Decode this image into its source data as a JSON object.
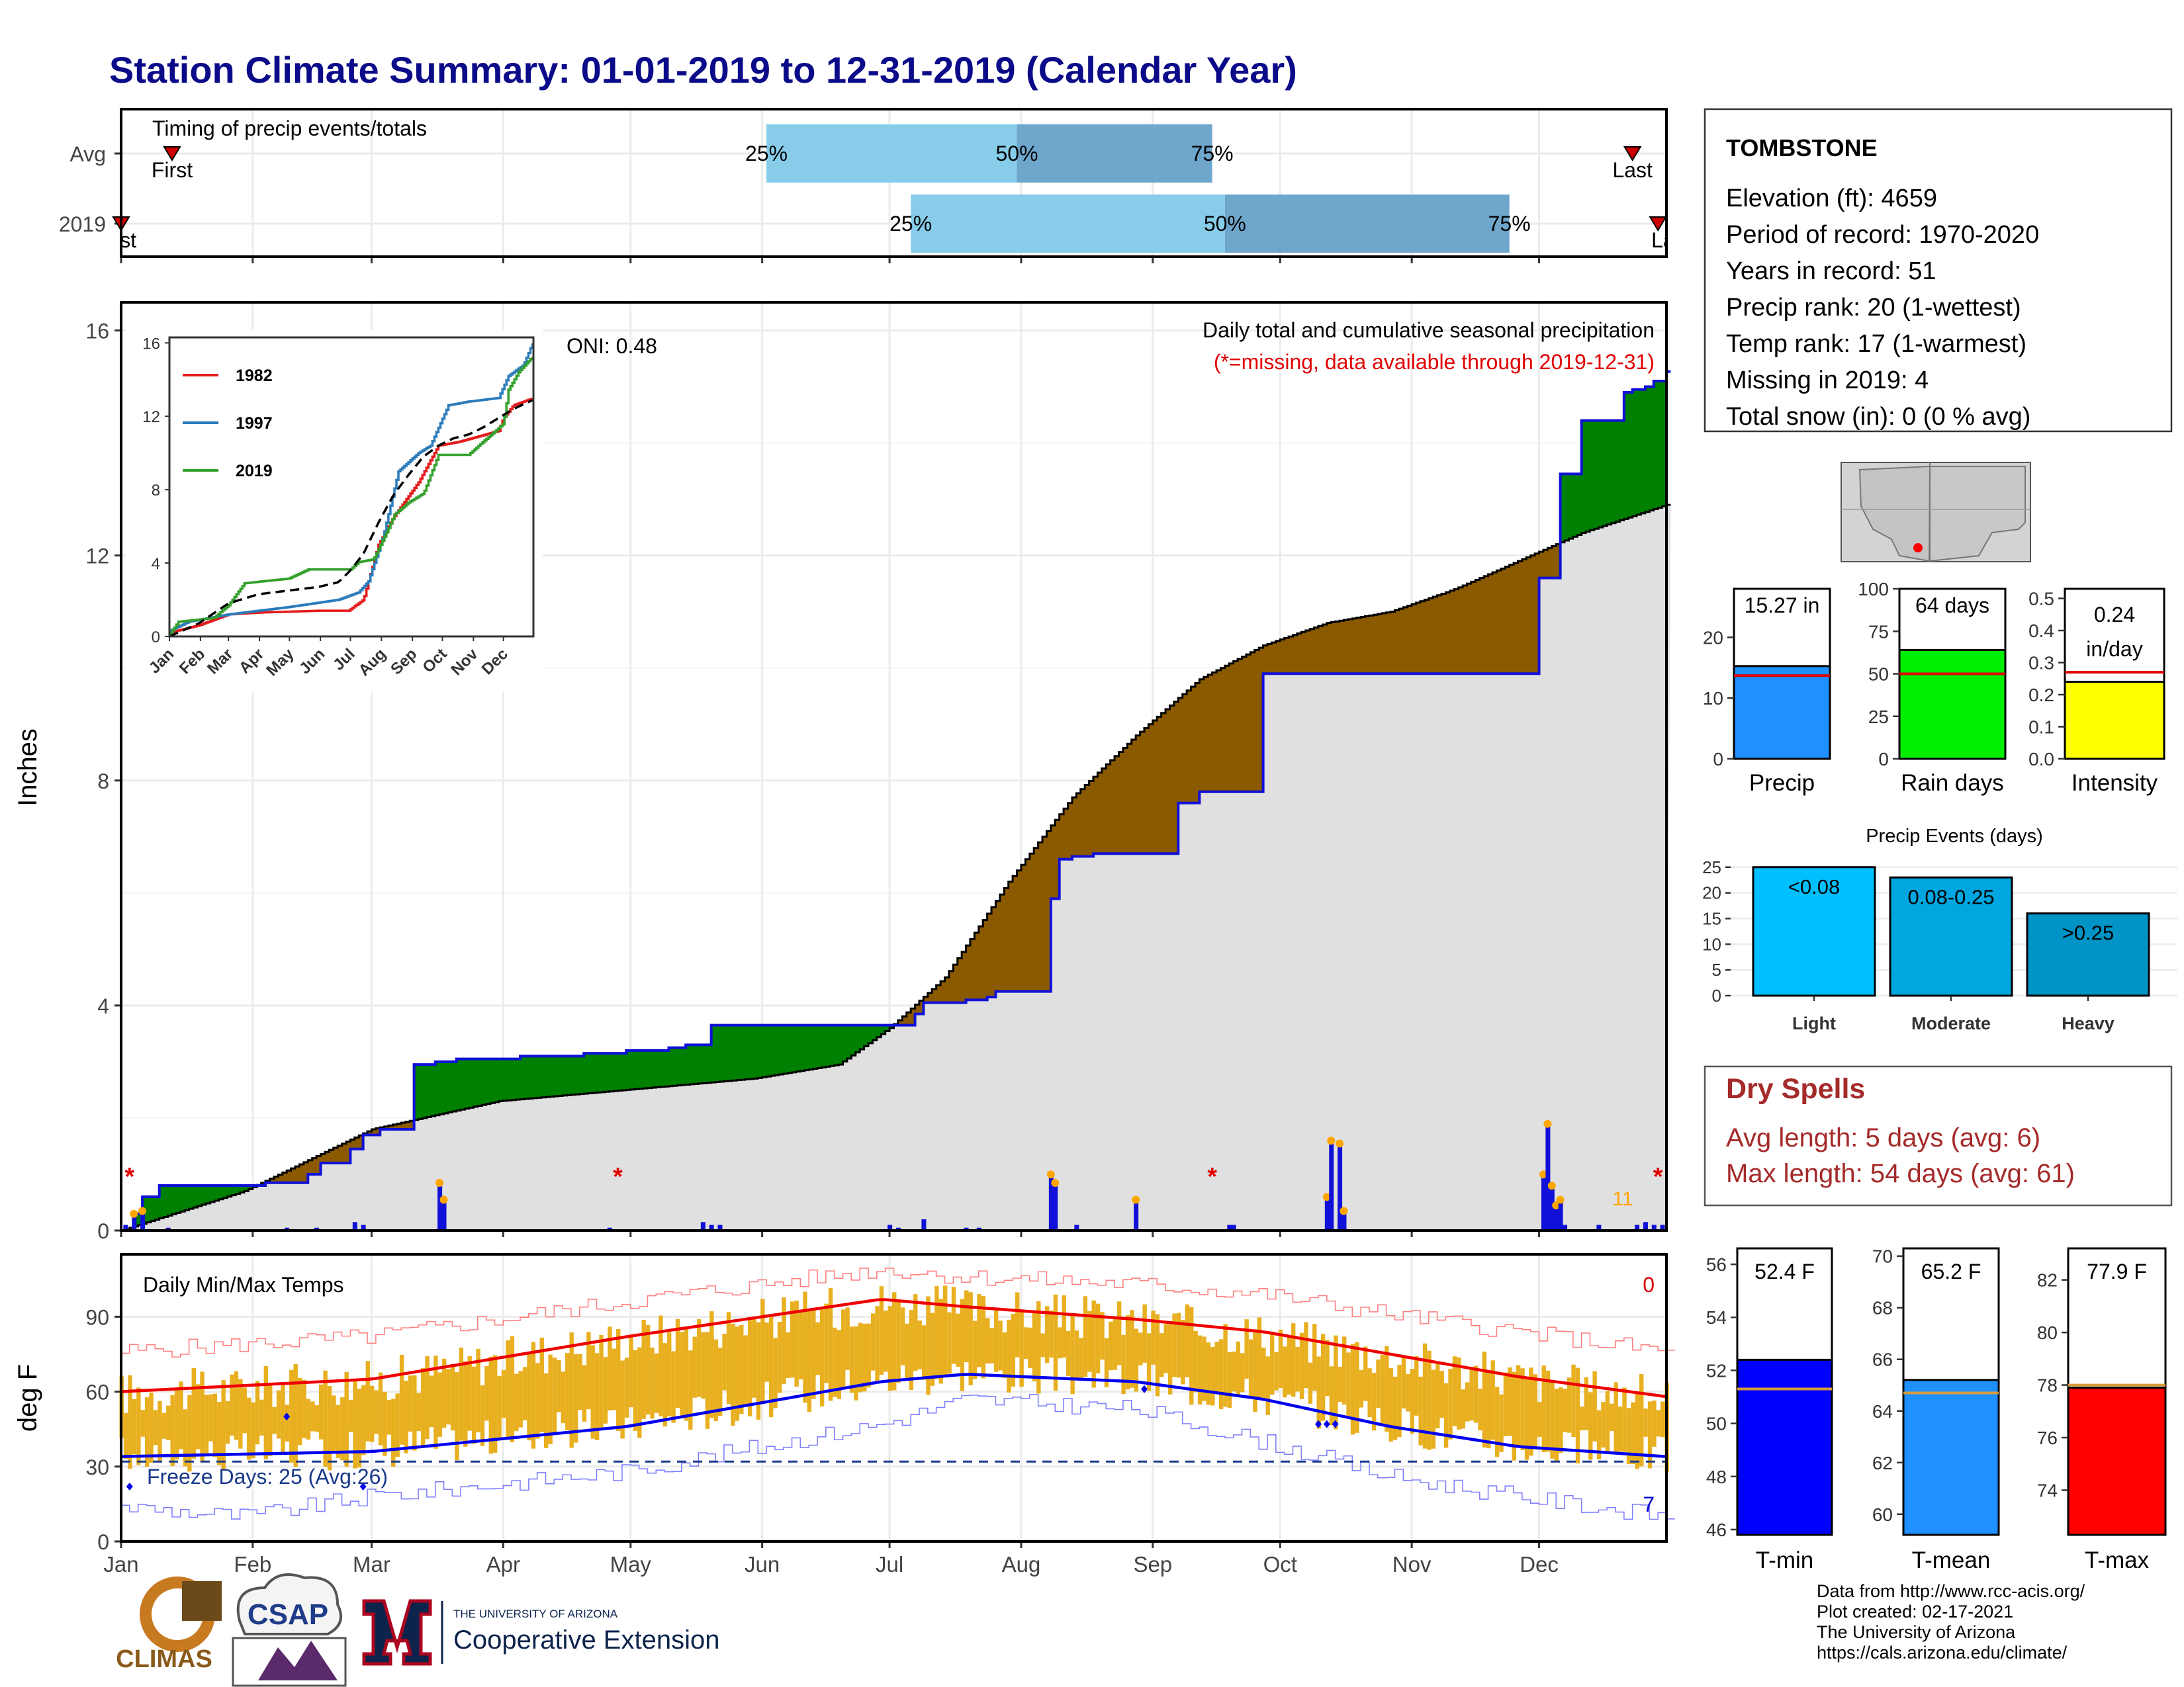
{
  "title": "Station Climate Summary: 01-01-2019 to 12-31-2019 (Calendar Year)",
  "colors": {
    "title": "#0b0b8a",
    "green": "#008000",
    "brown": "#8b5a00",
    "blue": "#1010d8",
    "grey": "#e0e0e0",
    "light_blue_bar": "#87cdea",
    "dark_blue_bar": "#6ea6cc",
    "temp_fill": "#e8b020",
    "dry_red": "#a52a2a"
  },
  "timing_panel": {
    "title": "Timing of precip events/totals",
    "rows": [
      {
        "label": "Avg",
        "first_label": "First",
        "last_label": "Last",
        "first_day": 13,
        "last_day": 357,
        "q25": 153,
        "q50": 212,
        "q75": 258,
        "q25_label": "25%",
        "q50_label": "50%",
        "q75_label": "75%"
      },
      {
        "label": "2019",
        "first_label": "First",
        "last_label": "Last",
        "first_day": 1,
        "last_day": 363,
        "q25": 187,
        "q50": 261,
        "q75": 328,
        "q25_label": "25%",
        "q50_label": "50%",
        "q75_label": "75%"
      }
    ]
  },
  "station_info": {
    "name": "TOMBSTONE",
    "lines": [
      "Elevation (ft): 4659",
      "Period of record: 1970-2020",
      "Years in record: 51",
      "Precip rank: 20 (1-wettest)",
      "Temp rank: 17 (1-warmest)",
      "Missing in 2019: 4",
      "Total snow (in): 0 (0 % avg)"
    ]
  },
  "precip_panel": {
    "ylabel": "Inches",
    "title": "Daily total and cumulative seasonal precipitation",
    "subtitle": "(*=missing, data available through 2019-12-31)",
    "oni": "ONI: 0.48",
    "y_ticks": [
      0,
      4,
      8,
      12,
      16
    ],
    "ylim": [
      0,
      16.5
    ],
    "annotation_count": "11"
  },
  "inset_chart": {
    "y_ticks": [
      0,
      4,
      8,
      12,
      16
    ],
    "x_ticks": [
      "Jan",
      "Feb",
      "Mar",
      "Apr",
      "May",
      "Jun",
      "Jul",
      "Aug",
      "Sep",
      "Oct",
      "Nov",
      "Dec"
    ],
    "legend": [
      {
        "name": "1982",
        "color": "#e31a1c"
      },
      {
        "name": "1997",
        "color": "#2b7bba"
      },
      {
        "name": "2019",
        "color": "#33a02c"
      }
    ]
  },
  "summary_bars": [
    {
      "label": "Precip",
      "value_label": "15.27 in",
      "value": 15.27,
      "avg": 13.7,
      "ymax": 28,
      "ticks": [
        0,
        10,
        20
      ],
      "color": "#1e90ff"
    },
    {
      "label": "Rain days",
      "value_label": "64 days",
      "value": 64,
      "avg": 50,
      "ymax": 100,
      "ticks": [
        0,
        25,
        50,
        75,
        100
      ],
      "color": "#00ee00"
    },
    {
      "label": "Intensity",
      "value_label_1": "0.24",
      "value_label_2": "in/day",
      "value": 0.24,
      "avg": 0.27,
      "ymax": 0.53,
      "ticks": [
        0.0,
        0.1,
        0.2,
        0.3,
        0.4,
        0.5
      ],
      "color": "#ffff00"
    }
  ],
  "precip_events": {
    "title": "Precip Events (days)",
    "ticks": [
      0,
      5,
      10,
      15,
      20,
      25
    ],
    "bars": [
      {
        "label": "Light",
        "bar_label": "<0.08",
        "value": 25,
        "color": "#00bfff"
      },
      {
        "label": "Moderate",
        "bar_label": "0.08-0.25",
        "value": 23,
        "color": "#00a6e0"
      },
      {
        "label": "Heavy",
        "bar_label": ">0.25",
        "value": 16,
        "color": "#0093c6"
      }
    ]
  },
  "dry_spells": {
    "title": "Dry Spells",
    "lines": [
      "Avg length: 5 days (avg: 6)",
      "Max length: 54 days (avg: 61)"
    ]
  },
  "temp_panel": {
    "ylabel": "deg F",
    "title": "Daily Min/Max Temps",
    "count_top": "0",
    "count_bottom": "7",
    "freeze_days": "Freeze Days: 25 (Avg:26)",
    "y_ticks": [
      0,
      30,
      60,
      90
    ],
    "ylim": [
      0,
      115
    ]
  },
  "temp_bars": [
    {
      "label": "T-min",
      "value_label": "52.4 F",
      "value": 52.4,
      "avg": 51.3,
      "ymin": 45.8,
      "ymax": 56.6,
      "ticks": [
        46,
        48,
        50,
        52,
        54,
        56
      ],
      "color": "#0000ff"
    },
    {
      "label": "T-mean",
      "value_label": "65.2 F",
      "value": 65.2,
      "avg": 64.7,
      "ymin": 59.2,
      "ymax": 70.3,
      "ticks": [
        60,
        62,
        64,
        66,
        68,
        70
      ],
      "color": "#1e90ff"
    },
    {
      "label": "T-max",
      "value_label": "77.9 F",
      "value": 77.9,
      "avg": 78.0,
      "ymin": 72.3,
      "ymax": 83.2,
      "ticks": [
        74,
        76,
        78,
        80,
        82
      ],
      "color": "#ff0000"
    }
  ],
  "x_months": [
    "Jan",
    "Feb",
    "Mar",
    "Apr",
    "May",
    "Jun",
    "Jul",
    "Aug",
    "Sep",
    "Oct",
    "Nov",
    "Dec"
  ],
  "logos": {
    "climas": "CLIMAS",
    "csap": "CSAP",
    "ua_small": "THE UNIVERSITY OF ARIZONA",
    "ua_big": "Cooperative Extension"
  },
  "footer": [
    "Data from http://www.rcc-acis.org/",
    "Plot created: 02-17-2021",
    "The University of Arizona",
    "https://cals.arizona.edu/climate/"
  ],
  "chart_data": [
    {
      "type": "area",
      "name": "cumulative precipitation",
      "x_unit": "day of year",
      "y_unit": "inches",
      "series": [
        {
          "name": "2019 cumulative",
          "x": [
            1,
            4,
            6,
            10,
            15,
            25,
            35,
            45,
            48,
            55,
            58,
            62,
            70,
            75,
            80,
            95,
            110,
            120,
            130,
            134,
            140,
            150,
            170,
            180,
            183,
            188,
            190,
            200,
            205,
            207,
            210,
            220,
            222,
            225,
            230,
            250,
            255,
            270,
            300,
            330,
            335,
            340,
            345,
            350,
            355,
            357,
            360,
            362,
            365
          ],
          "y": [
            0.0,
            0.3,
            0.6,
            0.8,
            0.8,
            0.8,
            0.85,
            1.0,
            1.2,
            1.45,
            1.7,
            1.8,
            2.95,
            3.0,
            3.05,
            3.1,
            3.15,
            3.2,
            3.25,
            3.3,
            3.65,
            3.65,
            3.65,
            3.65,
            3.65,
            3.85,
            4.05,
            4.1,
            4.15,
            4.25,
            4.25,
            5.9,
            6.6,
            6.65,
            6.7,
            7.6,
            7.8,
            9.9,
            9.9,
            9.9,
            11.6,
            13.45,
            14.4,
            14.4,
            14.9,
            14.95,
            15.0,
            15.1,
            15.27
          ]
        },
        {
          "name": "Average cumulative",
          "x": [
            1,
            30,
            60,
            90,
            120,
            150,
            170,
            182,
            195,
            210,
            225,
            240,
            255,
            270,
            285,
            300,
            315,
            330,
            345,
            365
          ],
          "y": [
            0.0,
            0.7,
            1.8,
            2.3,
            2.5,
            2.7,
            2.95,
            3.6,
            4.5,
            6.2,
            7.7,
            8.8,
            9.8,
            10.4,
            10.8,
            11.0,
            11.4,
            11.9,
            12.4,
            12.9
          ]
        },
        {
          "name": "Daily precipitation",
          "x": [
            2,
            4,
            6,
            12,
            40,
            47,
            56,
            58,
            76,
            77,
            116,
            138,
            140,
            142,
            182,
            184,
            190,
            200,
            203,
            220,
            221,
            226,
            240,
            262,
            263,
            285,
            286,
            288,
            289,
            336,
            337,
            338,
            339,
            340,
            341,
            349,
            358,
            360,
            362,
            364
          ],
          "y": [
            0.1,
            0.25,
            0.3,
            0.05,
            0.05,
            0.05,
            0.15,
            0.1,
            0.8,
            0.5,
            0.05,
            0.15,
            0.1,
            0.1,
            0.1,
            0.05,
            0.2,
            0.05,
            0.05,
            0.95,
            0.8,
            0.1,
            0.5,
            0.1,
            0.1,
            0.55,
            1.55,
            1.5,
            0.3,
            0.95,
            1.85,
            0.75,
            0.4,
            0.5,
            0.1,
            0.1,
            0.1,
            0.15,
            0.1,
            0.1
          ]
        }
      ],
      "ylabel": "Inches",
      "ylim": [
        0,
        16.5
      ]
    },
    {
      "type": "line",
      "name": "Daily Min/Max Temps",
      "x_unit": "day of year",
      "series": [
        {
          "name": "Avg max",
          "x": [
            1,
            60,
            120,
            180,
            200,
            240,
            270,
            300,
            330,
            365
          ],
          "y": [
            60,
            65,
            82,
            97,
            94,
            89,
            84,
            75,
            66,
            58
          ]
        },
        {
          "name": "Avg min",
          "x": [
            1,
            60,
            120,
            180,
            200,
            240,
            270,
            300,
            330,
            365
          ],
          "y": [
            34,
            36,
            46,
            64,
            67,
            64,
            57,
            46,
            38,
            34
          ]
        },
        {
          "name": "Record high",
          "x": [
            1,
            60,
            120,
            180,
            200,
            240,
            270,
            300,
            330,
            365
          ],
          "y": [
            76,
            82,
            96,
            109,
            106,
            103,
            99,
            91,
            84,
            76
          ]
        },
        {
          "name": "Record low",
          "x": [
            1,
            30,
            60,
            120,
            180,
            200,
            240,
            270,
            300,
            330,
            365
          ],
          "y": [
            14,
            10,
            18,
            28,
            47,
            57,
            53,
            40,
            26,
            18,
            10
          ]
        },
        {
          "name": "Freeze threshold",
          "x": [
            1,
            365
          ],
          "y": [
            32,
            32
          ]
        }
      ],
      "ylabel": "deg F",
      "ylim": [
        0,
        115
      ]
    }
  ]
}
